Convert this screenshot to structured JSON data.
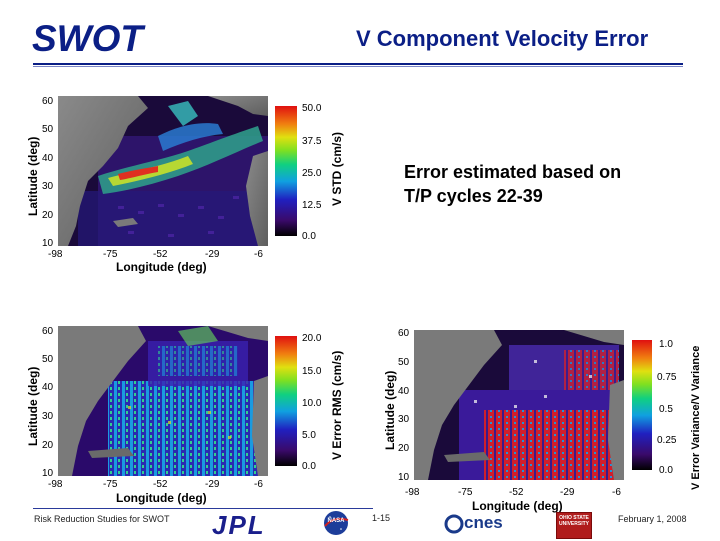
{
  "header": {
    "logo_text": "SWOT",
    "title": "V Component Velocity Error",
    "brand_color": "#0b1f86"
  },
  "note": {
    "line1": "Error estimated based on",
    "line2": "T/P cycles 22-39"
  },
  "panels": [
    {
      "id": "std",
      "y_label": "Latitude (deg)",
      "x_label": "Longitude (deg)",
      "y_ticks": [
        "60",
        "50",
        "40",
        "30",
        "20",
        "10"
      ],
      "x_ticks": [
        "-98",
        "-75",
        "-52",
        "-29",
        "-6"
      ],
      "colorbar_label": "V STD (cm/s)",
      "colorbar_ticks": [
        "50.0",
        "37.5",
        "25.0",
        "12.5",
        "0.0"
      ]
    },
    {
      "id": "rms",
      "y_label": "Latitude (deg)",
      "x_label": "Longitude (deg)",
      "y_ticks": [
        "60",
        "50",
        "40",
        "30",
        "20",
        "10"
      ],
      "x_ticks": [
        "-98",
        "-75",
        "-52",
        "-29",
        "-6"
      ],
      "colorbar_label": "V Error RMS (cm/s)",
      "colorbar_ticks": [
        "20.0",
        "15.0",
        "10.0",
        "5.0",
        "0.0"
      ]
    },
    {
      "id": "ratio",
      "y_label": "Latitude (deg)",
      "x_label": "Longitude (deg)",
      "y_ticks": [
        "60",
        "50",
        "40",
        "30",
        "20",
        "10"
      ],
      "x_ticks": [
        "-98",
        "-75",
        "-52",
        "-29",
        "-6"
      ],
      "colorbar_label": "V Error Variance/V Variance",
      "colorbar_ticks": [
        "1.0",
        "0.75",
        "0.5",
        "0.25",
        "0.0"
      ]
    }
  ],
  "footer": {
    "left": "Risk Reduction Studies for SWOT",
    "page": "1-15",
    "date": "February 1, 2008",
    "jpl": "JPL",
    "nasa": "NASA",
    "cnes": "cnes",
    "osu": "OHIO STATE UNIVERSITY"
  }
}
